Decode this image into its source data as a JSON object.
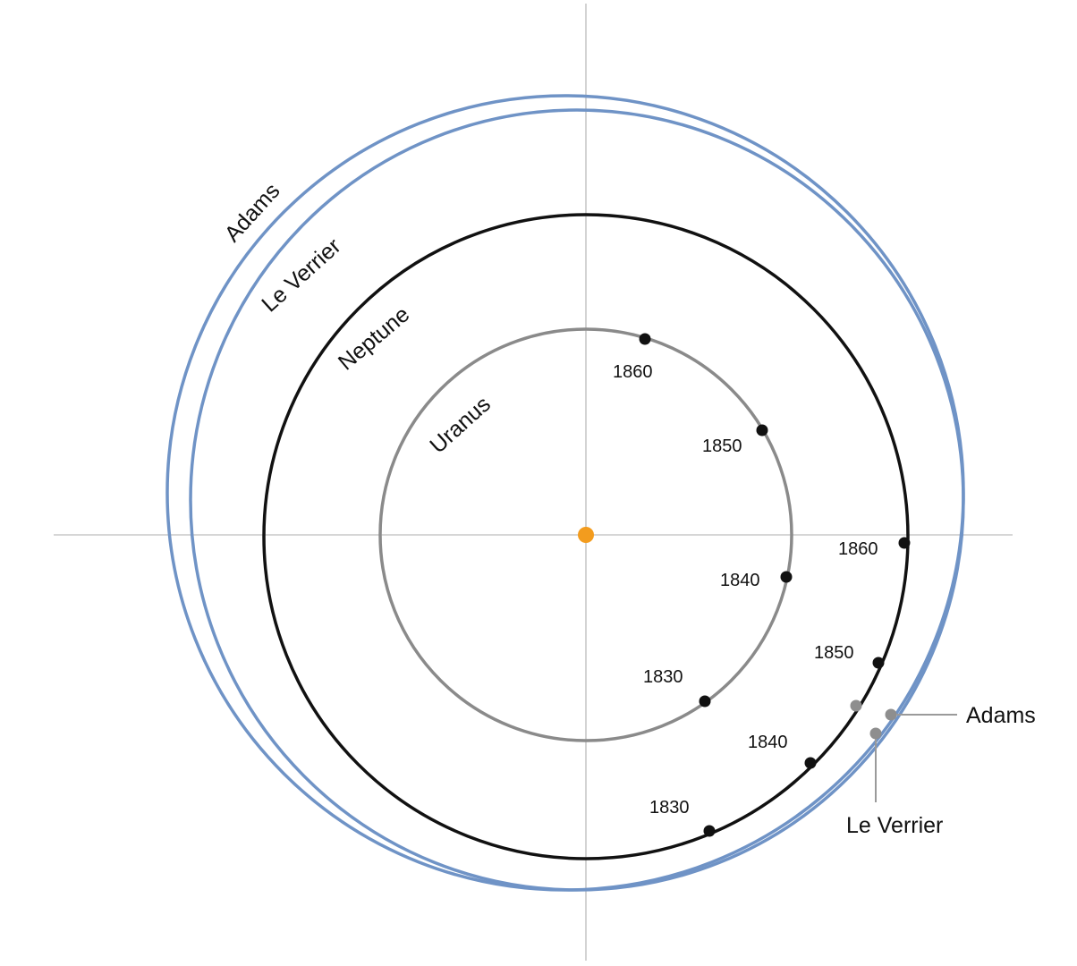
{
  "colors": {
    "background": "#ffffff",
    "axis": "#c8c8c8",
    "uranus_orbit": "#8a8a8a",
    "neptune_orbit": "#111111",
    "predicted_orbit": "#6f93c6",
    "sun": "#f39c1e",
    "actual_position": "#111111",
    "predicted_position": "#8e8e8e",
    "callout_line": "#9a9a9a"
  },
  "orbits": {
    "adams": "Adams",
    "le_verrier": "Le Verrier",
    "neptune": "Neptune",
    "uranus": "Uranus"
  },
  "uranus_positions": [
    "1860",
    "1850",
    "1840",
    "1830"
  ],
  "neptune_positions": [
    "1860",
    "1850",
    "1840",
    "1830"
  ],
  "predicted_positions": {
    "adams": "Adams",
    "le_verrier": "Le Verrier"
  },
  "icons": {
    "sun": "sun-dot"
  }
}
